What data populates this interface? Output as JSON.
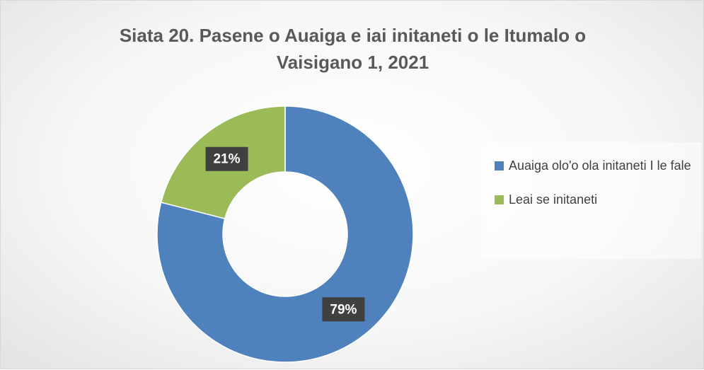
{
  "chart_data": {
    "type": "donut",
    "title": "Siata 20. Pasene o Auaiga e iai initaneti o le Itumalo o Vaisigano 1, 2021",
    "categories": [
      "Auaiga olo'o ola initaneti I le fale",
      "Leai se initaneti"
    ],
    "values": [
      79,
      21
    ],
    "value_labels": [
      "79%",
      "21%"
    ],
    "colors": [
      "#4f81bd",
      "#9bbb59"
    ],
    "legend": "right"
  }
}
